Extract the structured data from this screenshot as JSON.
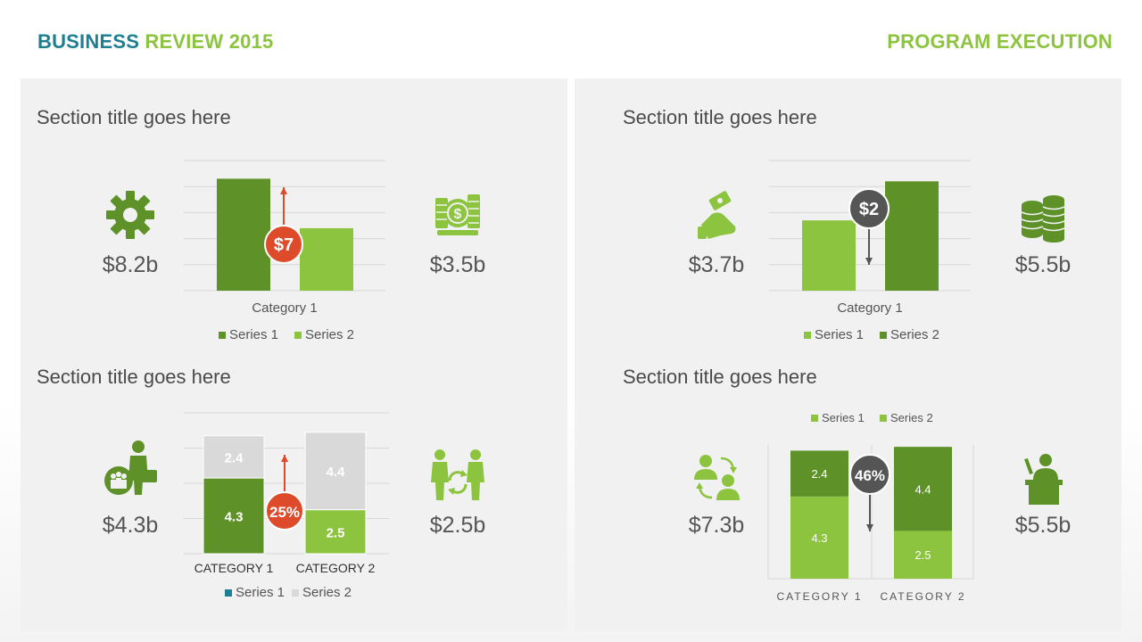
{
  "header": {
    "title_part1": "BUSINESS",
    "title_part2": "REVIEW 2015",
    "right": "PROGRAM EXECUTION"
  },
  "colors": {
    "dark_green": "#5e9229",
    "light_green": "#8cc43f",
    "gray_segment": "#d9d9d9",
    "red_badge": "#dd4b2b",
    "dark_badge": "#555555",
    "teal": "#1e7f92"
  },
  "sections": [
    {
      "title": "Section title goes here",
      "left_icon": "gear-icon",
      "left_value": "$8.2b",
      "right_icon": "money-stack-icon",
      "right_value": "$3.5b"
    },
    {
      "title": "Section title goes here",
      "left_icon": "cash-hand-icon",
      "left_value": "$3.7b",
      "right_icon": "coin-stacks-icon",
      "right_value": "$5.5b"
    },
    {
      "title": "Section title goes here",
      "left_icon": "businessman-team-icon",
      "left_value": "$4.3b",
      "right_icon": "people-exchange-icon",
      "right_value": "$2.5b"
    },
    {
      "title": "Section title goes here",
      "left_icon": "user-swap-icon",
      "left_value": "$7.3b",
      "right_icon": "speaker-podium-icon",
      "right_value": "$5.5b"
    }
  ],
  "chart_data": [
    {
      "type": "bar",
      "categories": [
        "Category 1"
      ],
      "series": [
        {
          "name": "Series 1",
          "values": [
            4.3
          ],
          "color": "#5e9229"
        },
        {
          "name": "Series 2",
          "values": [
            2.4
          ],
          "color": "#8cc43f"
        }
      ],
      "ylim": [
        0,
        5
      ],
      "grid": true,
      "legend": "bottom",
      "badge": {
        "text": "$7",
        "color": "#dd4b2b",
        "arrow": "up"
      }
    },
    {
      "type": "bar",
      "categories": [
        "Category 1"
      ],
      "series": [
        {
          "name": "Series 1",
          "values": [
            2.7
          ],
          "color": "#8cc43f"
        },
        {
          "name": "Series 2",
          "values": [
            4.2
          ],
          "color": "#5e9229"
        }
      ],
      "ylim": [
        0,
        5
      ],
      "grid": true,
      "legend": "bottom",
      "badge": {
        "text": "$2",
        "color": "#555555",
        "arrow": "down"
      }
    },
    {
      "type": "bar",
      "stacked": true,
      "categories": [
        "CATEGORY 1",
        "CATEGORY 2"
      ],
      "series": [
        {
          "name": "Series 1",
          "values": [
            4.3,
            2.5
          ],
          "colors": [
            "#5e9229",
            "#8cc43f"
          ],
          "legend_color": "#1e7f92"
        },
        {
          "name": "Series 2",
          "values": [
            2.4,
            4.4
          ],
          "colors": [
            "#d9d9d9",
            "#d9d9d9"
          ],
          "legend_color": "#d9d9d9"
        }
      ],
      "ylim": [
        0,
        8
      ],
      "grid": true,
      "legend": "bottom",
      "badge": {
        "text": "25%",
        "color": "#dd4b2b",
        "arrow": "up"
      }
    },
    {
      "type": "bar",
      "stacked": true,
      "categories": [
        "CATEGORY 1",
        "CATEGORY 2"
      ],
      "series": [
        {
          "name": "Series 1",
          "values": [
            4.3,
            2.5
          ],
          "colors": [
            "#8cc43f",
            "#8cc43f"
          ],
          "legend_color": "#8cc43f"
        },
        {
          "name": "Series 2",
          "values": [
            2.4,
            4.4
          ],
          "colors": [
            "#5e9229",
            "#5e9229"
          ],
          "legend_color": "#8cc43f"
        }
      ],
      "ylim": [
        0,
        7
      ],
      "grid": false,
      "legend": "top",
      "badge": {
        "text": "46%",
        "color": "#555555",
        "arrow": "down"
      }
    }
  ]
}
